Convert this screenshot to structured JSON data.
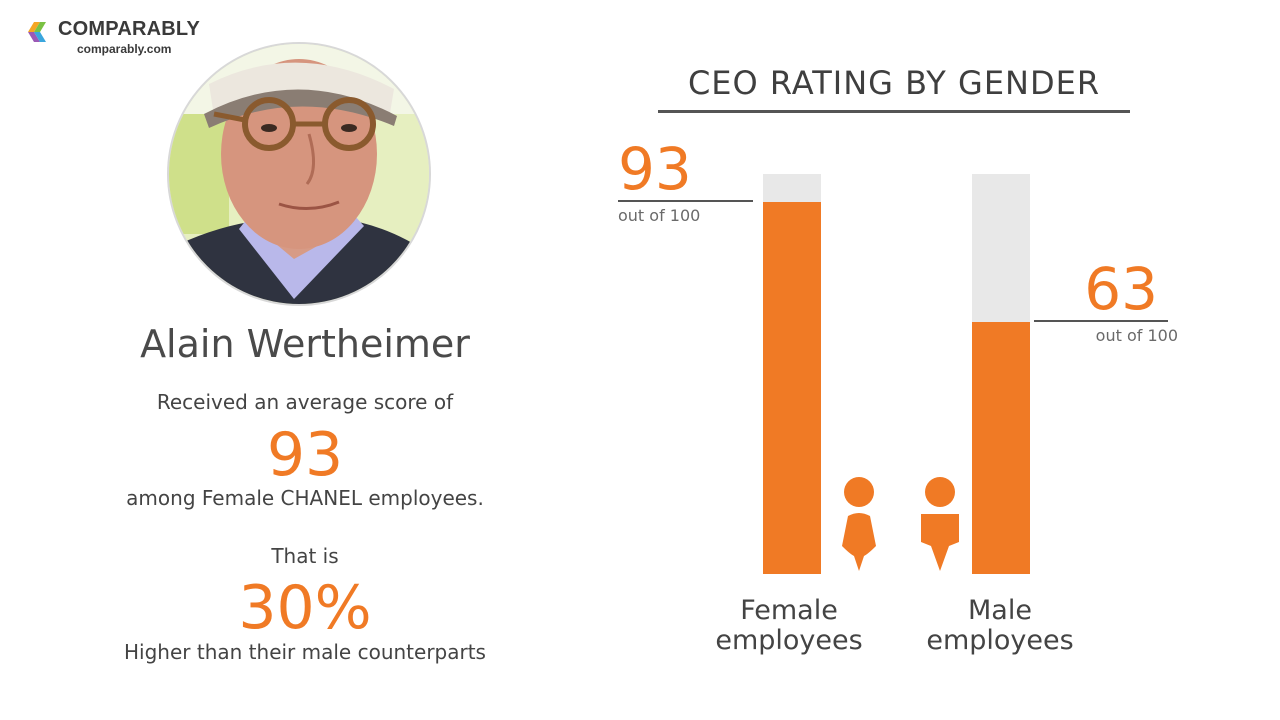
{
  "brand": {
    "name": "COMPARABLY",
    "url": "comparably.com"
  },
  "person": {
    "name": "Alain Wertheimer",
    "intro_text": "Received an average score of",
    "score": "93",
    "score_context": "among Female CHANEL employees.",
    "comparison_intro": "That is",
    "difference": "30%",
    "comparison_text": "Higher than their male counterparts"
  },
  "colors": {
    "accent": "#f07a25",
    "track": "#e8e8e8",
    "text": "#444444"
  },
  "icons": {
    "female": "female-person-icon",
    "male": "male-person-icon"
  },
  "chart_data": {
    "type": "bar",
    "title": "CEO RATING BY GENDER",
    "categories": [
      "Female employees",
      "Male employees"
    ],
    "category_lines": [
      [
        "Female",
        "employees"
      ],
      [
        "Male",
        "employees"
      ]
    ],
    "values": [
      93,
      63
    ],
    "value_labels": [
      "93",
      "63"
    ],
    "value_sublabels": [
      "out of 100",
      "out of 100"
    ],
    "ylim": [
      0,
      100
    ],
    "grid": false,
    "legend": "none"
  }
}
